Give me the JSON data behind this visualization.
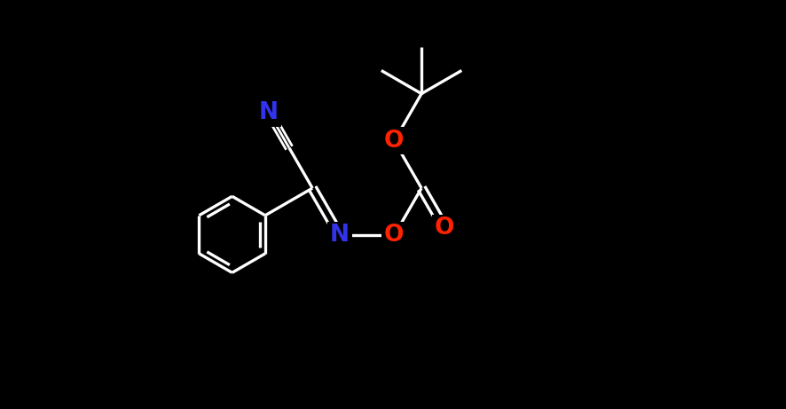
{
  "background_color": "#000000",
  "bond_color": "#ffffff",
  "N_color": "#3333ee",
  "O_color": "#ff2200",
  "figsize": [
    8.86,
    4.61
  ],
  "dpi": 100,
  "lw": 2.4,
  "fs": 19,
  "bl": 1.0,
  "xlim": [
    -0.5,
    9.5
  ],
  "ylim": [
    -3.5,
    4.0
  ]
}
